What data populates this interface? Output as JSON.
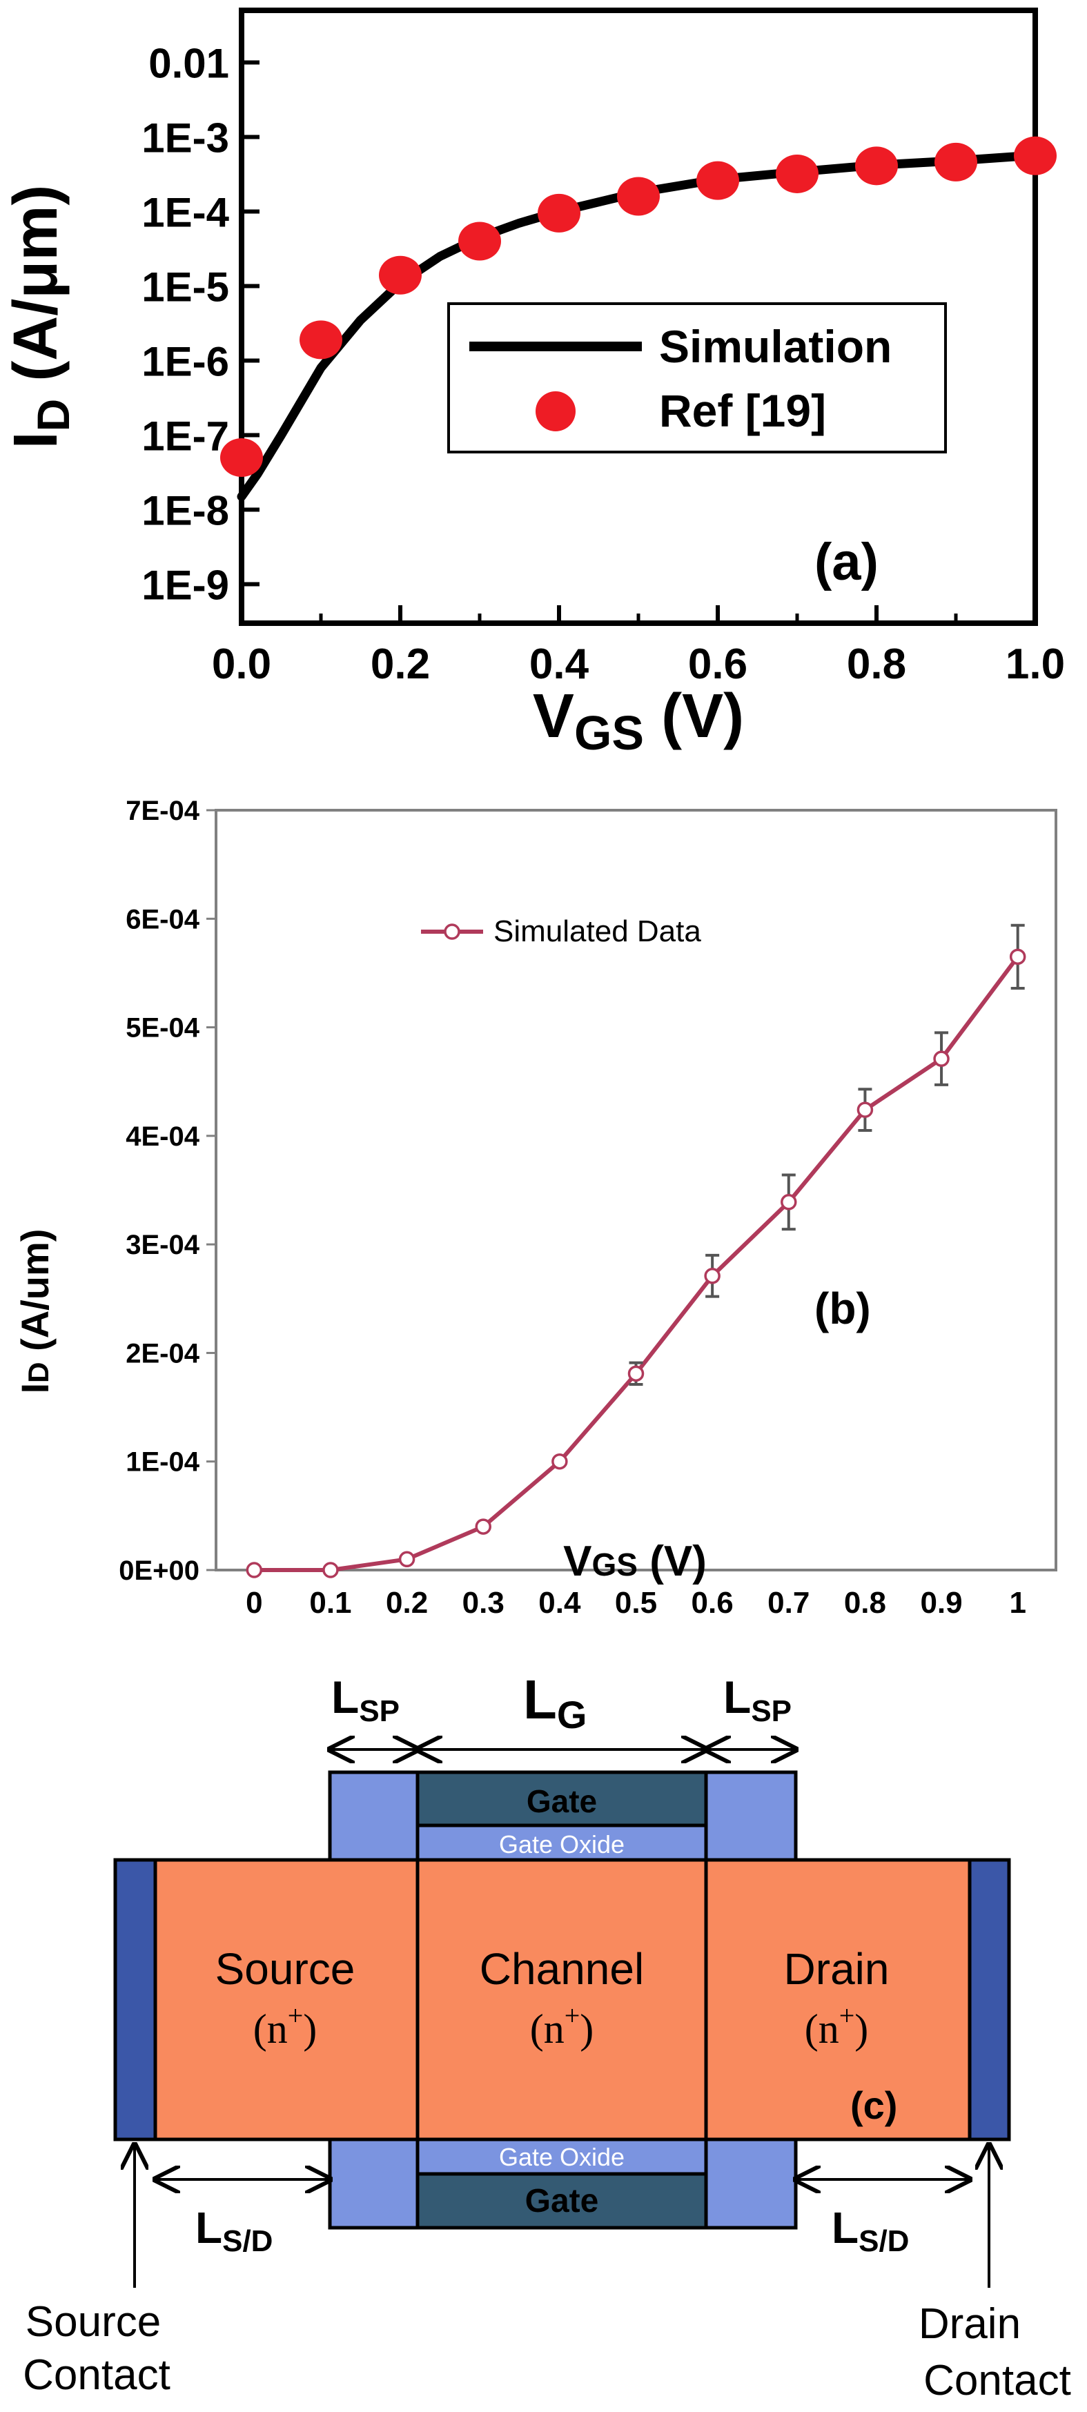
{
  "chart_data": [
    {
      "type": "line",
      "panel_label": "(a)",
      "xlabel_main": "V",
      "xlabel_sub": "GS",
      "xlabel_unit": " (V)",
      "ylabel_main": "I",
      "ylabel_sub": "D",
      "ylabel_unit": " (A/μm)",
      "yscale": "log",
      "xlim": [
        0.0,
        1.0
      ],
      "ylim": [
        3e-10,
        0.05
      ],
      "x_ticks": [
        "0.0",
        "0.2",
        "0.4",
        "0.6",
        "0.8",
        "1.0"
      ],
      "y_ticks": [
        "1E-9",
        "1E-8",
        "1E-7",
        "1E-6",
        "1E-5",
        "1E-4",
        "1E-3",
        "0.01"
      ],
      "legend_position": "center-right",
      "series": [
        {
          "name": "Simulation",
          "style": "line",
          "color": "#000000",
          "x": [
            0.0,
            0.02,
            0.05,
            0.1,
            0.15,
            0.2,
            0.25,
            0.3,
            0.35,
            0.4,
            0.5,
            0.6,
            0.7,
            0.8,
            0.9,
            1.0
          ],
          "y": [
            1.5e-08,
            3e-08,
            1e-07,
            8e-07,
            3.5e-06,
            1.1e-05,
            2.5e-05,
            4.5e-05,
            7e-05,
            0.0001,
            0.00018,
            0.00027,
            0.00034,
            0.00042,
            0.00048,
            0.00057
          ]
        },
        {
          "name": "Ref [19]",
          "style": "markers",
          "color": "#ee1c25",
          "x": [
            0.0,
            0.1,
            0.2,
            0.3,
            0.4,
            0.5,
            0.6,
            0.7,
            0.8,
            0.9,
            1.0
          ],
          "y": [
            5e-08,
            1.9e-06,
            1.4e-05,
            4e-05,
            9.5e-05,
            0.00016,
            0.00026,
            0.00032,
            0.00041,
            0.00046,
            0.00056
          ]
        }
      ]
    },
    {
      "type": "line",
      "panel_label": "(b)",
      "xlabel_main": "V",
      "xlabel_sub": "GS",
      "xlabel_unit": " (V)",
      "ylabel_main": "I",
      "ylabel_sub": "D",
      "ylabel_unit": " (A/um)",
      "xlim": [
        -0.05,
        1.05
      ],
      "ylim": [
        0,
        0.0007
      ],
      "categories": [
        "0",
        "0.1",
        "0.2",
        "0.3",
        "0.4",
        "0.5",
        "0.6",
        "0.7",
        "0.8",
        "0.9",
        "1"
      ],
      "y_ticks": [
        "0E+00",
        "1E-04",
        "2E-04",
        "3E-04",
        "4E-04",
        "5E-04",
        "6E-04",
        "7E-04"
      ],
      "legend_position": "top-left",
      "series": [
        {
          "name": "Simulated Data",
          "color": "#b03a5b",
          "x": [
            0,
            0.1,
            0.2,
            0.3,
            0.4,
            0.5,
            0.6,
            0.7,
            0.8,
            0.9,
            1.0
          ],
          "values": [
            0.0,
            0.0,
            1e-05,
            4e-05,
            0.0001,
            0.000181,
            0.000271,
            0.000339,
            0.000424,
            0.000471,
            0.000565
          ],
          "error": [
            0,
            0,
            0,
            0,
            0,
            1e-05,
            1.9e-05,
            2.5e-05,
            1.9e-05,
            2.4e-05,
            2.9e-05
          ]
        }
      ]
    }
  ],
  "diagram": {
    "panel_label": "(c)",
    "gate_top": "Gate",
    "gate_oxide_top": "Gate Oxide",
    "gate_bottom": "Gate",
    "gate_oxide_bottom": "Gate Oxide",
    "source": "Source",
    "source_doping": "n",
    "channel": "Channel",
    "channel_doping": "n",
    "drain": "Drain",
    "drain_doping": "n",
    "doping_sup": "+",
    "dim_lsp_main": "L",
    "dim_lsp_sub": "SP",
    "dim_lg_main": "L",
    "dim_lg_sub": "G",
    "dim_lsd_main": "L",
    "dim_lsd_sub": "S/D",
    "source_contact_line1": "Source",
    "source_contact_line2": "Contact",
    "drain_contact_line1": "Drain",
    "drain_contact_line2": "Contact",
    "colors": {
      "region": "#f98a5e",
      "spacer": "#7b94e0",
      "gate": "#345a73",
      "contact": "#3b57a8"
    }
  }
}
